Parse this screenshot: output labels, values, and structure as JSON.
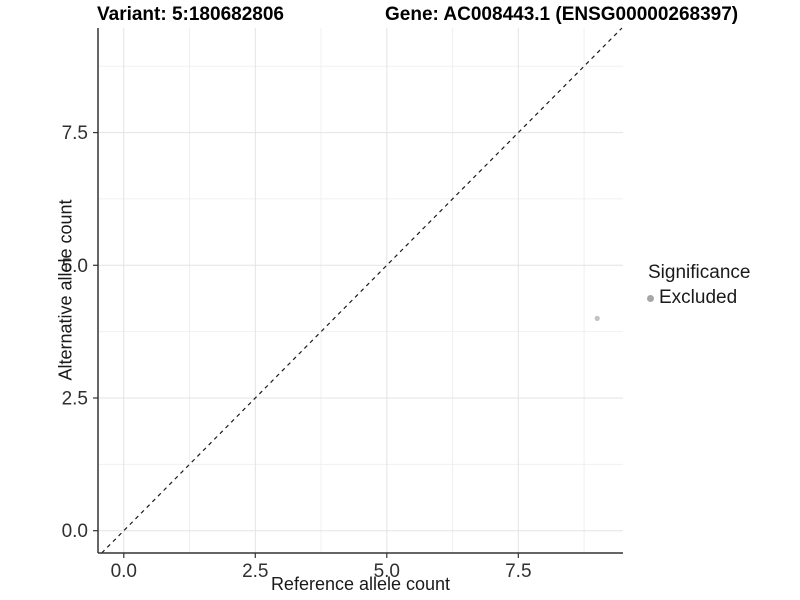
{
  "figure": {
    "title_left": "Variant: 5:180682806",
    "title_right": "Gene: AC008443.1 (ENSG00000268397)"
  },
  "chart_data": {
    "type": "scatter",
    "title": "Variant: 5:180682806  |  Gene: AC008443.1 (ENSG00000268397)",
    "xlabel": "Reference allele count",
    "ylabel": "Alternative allele count",
    "xlim": [
      -0.49,
      9.49
    ],
    "ylim": [
      -0.42,
      9.47
    ],
    "x_ticks": {
      "values": [
        0,
        2.5,
        5,
        7.5
      ],
      "labels": [
        "0.0",
        "2.5",
        "5.0",
        "7.5"
      ]
    },
    "y_ticks": {
      "values": [
        0,
        2.5,
        5,
        7.5
      ],
      "labels": [
        "0.0",
        "2.5",
        "5.0",
        "7.5"
      ]
    },
    "minor_tick_step": 1.25,
    "grid": true,
    "legend_position": "right",
    "series": [
      {
        "name": "Excluded",
        "marker": "circle",
        "color": "#c3c3c3",
        "points": [
          {
            "x": 9,
            "y": 4
          }
        ]
      }
    ],
    "reference_line": {
      "kind": "abline",
      "slope": 1,
      "intercept": 0,
      "style": "dashed",
      "color": "#1a1a1a"
    },
    "legend": {
      "title": "Significance",
      "entries": [
        {
          "label": "Excluded",
          "color": "#a6a6a6"
        }
      ]
    },
    "colors": {
      "background": "#ffffff",
      "axis_line": "#333333",
      "tick_text": "#303030",
      "grid_major": "#e3e3e3",
      "grid_minor": "#f0f0f0",
      "point": "#c3c3c3",
      "legend_key": "#a6a6a6",
      "dashed_line": "#1a1a1a"
    }
  }
}
